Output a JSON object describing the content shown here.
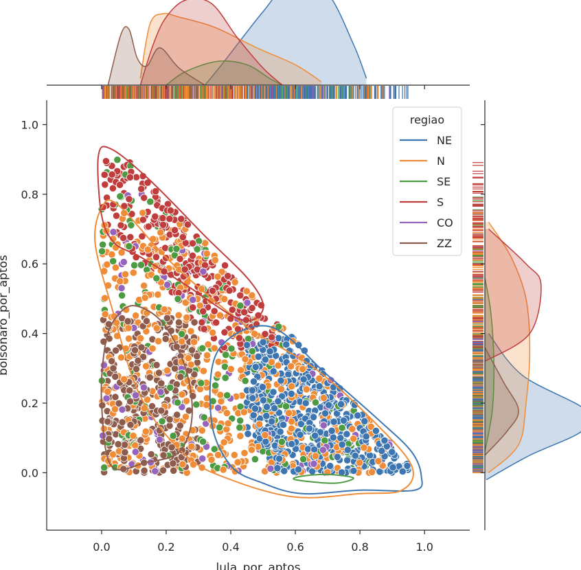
{
  "chart_data": {
    "type": "scatter",
    "title": "",
    "xlabel": "lula_por_aptos",
    "ylabel": "bolsonaro_por_aptos",
    "xlim": [
      -0.17,
      1.14
    ],
    "ylim": [
      -0.165,
      1.07
    ],
    "x_ticks": [
      {
        "value": 0.0,
        "label": "0.0"
      },
      {
        "value": 0.2,
        "label": "0.2"
      },
      {
        "value": 0.4,
        "label": "0.4"
      },
      {
        "value": 0.6,
        "label": "0.6"
      },
      {
        "value": 0.8,
        "label": "0.8"
      },
      {
        "value": 1.0,
        "label": "1.0"
      }
    ],
    "y_ticks": [
      {
        "value": 0.0,
        "label": "0.0"
      },
      {
        "value": 0.2,
        "label": "0.2"
      },
      {
        "value": 0.4,
        "label": "0.4"
      },
      {
        "value": 0.6,
        "label": "0.6"
      },
      {
        "value": 0.8,
        "label": "0.8"
      },
      {
        "value": 1.0,
        "label": "1.0"
      }
    ],
    "grid": false,
    "legend": {
      "title": "regiao",
      "placement": "top-right"
    },
    "series": [
      {
        "name": "NE",
        "color": "#3d75b0",
        "region": {
          "x": [
            0.45,
            0.97
          ],
          "y": [
            0.0,
            0.4
          ]
        },
        "contour": [
          [
            0.36,
            0.35
          ],
          [
            0.52,
            0.42
          ],
          [
            0.7,
            0.28
          ],
          [
            0.86,
            0.15
          ],
          [
            0.96,
            0.06
          ],
          [
            0.99,
            -0.01
          ],
          [
            0.97,
            -0.05
          ],
          [
            0.8,
            -0.05
          ],
          [
            0.62,
            -0.06
          ],
          [
            0.5,
            -0.03
          ],
          [
            0.4,
            0.02
          ],
          [
            0.34,
            0.15
          ]
        ],
        "marginal_x": [
          [
            0.32,
            0.0
          ],
          [
            0.38,
            0.35
          ],
          [
            0.5,
            1.08
          ],
          [
            0.6,
            1.6
          ],
          [
            0.7,
            1.35
          ],
          [
            0.78,
            0.6
          ],
          [
            0.82,
            0.1
          ]
        ],
        "marginal_y": [
          [
            -0.02,
            0.02
          ],
          [
            0.05,
            0.6
          ],
          [
            0.12,
            1.3
          ],
          [
            0.18,
            1.35
          ],
          [
            0.28,
            0.5
          ],
          [
            0.4,
            0.05
          ]
        ]
      },
      {
        "name": "N",
        "color": "#ef8c37",
        "region": {
          "x": [
            0.0,
            0.9
          ],
          "y": [
            0.0,
            0.75
          ]
        },
        "contour": [
          [
            0.0,
            0.76
          ],
          [
            0.05,
            0.77
          ],
          [
            0.22,
            0.6
          ],
          [
            0.45,
            0.42
          ],
          [
            0.66,
            0.3
          ],
          [
            0.84,
            0.15
          ],
          [
            0.96,
            0.02
          ],
          [
            0.93,
            -0.05
          ],
          [
            0.8,
            -0.06
          ],
          [
            0.6,
            -0.07
          ],
          [
            0.4,
            -0.02
          ],
          [
            0.26,
            0.05
          ],
          [
            0.12,
            0.22
          ],
          [
            0.03,
            0.48
          ],
          [
            -0.02,
            0.66
          ]
        ],
        "marginal_x": [
          [
            0.12,
            0.1
          ],
          [
            0.15,
            0.9
          ],
          [
            0.19,
            1.05
          ],
          [
            0.24,
            1.0
          ],
          [
            0.35,
            0.85
          ],
          [
            0.48,
            0.55
          ],
          [
            0.6,
            0.3
          ],
          [
            0.68,
            0.05
          ]
        ],
        "marginal_y": [
          [
            0.0,
            0.05
          ],
          [
            0.08,
            0.45
          ],
          [
            0.2,
            0.55
          ],
          [
            0.35,
            0.6
          ],
          [
            0.5,
            0.55
          ],
          [
            0.62,
            0.35
          ],
          [
            0.72,
            0.05
          ]
        ]
      },
      {
        "name": "SE",
        "color": "#4c9b42",
        "region": {
          "x": [
            0.0,
            0.85
          ],
          "y": [
            0.0,
            0.9
          ]
        },
        "contour": [
          [
            0.6,
            -0.02
          ],
          [
            0.72,
            -0.03
          ],
          [
            0.78,
            -0.015
          ],
          [
            0.7,
            -0.005
          ],
          [
            0.62,
            -0.01
          ]
        ],
        "marginal_x": [
          [
            0.2,
            0.0
          ],
          [
            0.26,
            0.2
          ],
          [
            0.36,
            0.35
          ],
          [
            0.45,
            0.3
          ],
          [
            0.52,
            0.1
          ],
          [
            0.56,
            0.0
          ]
        ],
        "marginal_y": [
          [
            0.06,
            0.0
          ],
          [
            0.18,
            0.1
          ],
          [
            0.32,
            0.12
          ],
          [
            0.46,
            0.08
          ],
          [
            0.56,
            0.0
          ]
        ]
      },
      {
        "name": "S",
        "color": "#c03d3d",
        "region": {
          "x": [
            0.0,
            0.55
          ],
          "y": [
            0.35,
            0.9
          ]
        },
        "contour": [
          [
            -0.01,
            0.91
          ],
          [
            0.03,
            0.93
          ],
          [
            0.15,
            0.84
          ],
          [
            0.32,
            0.68
          ],
          [
            0.46,
            0.55
          ],
          [
            0.5,
            0.47
          ],
          [
            0.43,
            0.44
          ],
          [
            0.26,
            0.54
          ],
          [
            0.12,
            0.62
          ],
          [
            0.04,
            0.66
          ],
          [
            0.0,
            0.74
          ]
        ],
        "marginal_x": [
          [
            0.12,
            0.0
          ],
          [
            0.16,
            0.6
          ],
          [
            0.2,
            1.0
          ],
          [
            0.26,
            1.25
          ],
          [
            0.34,
            1.2
          ],
          [
            0.42,
            0.7
          ],
          [
            0.5,
            0.25
          ],
          [
            0.56,
            0.0
          ]
        ],
        "marginal_y": [
          [
            0.32,
            0.0
          ],
          [
            0.4,
            0.6
          ],
          [
            0.54,
            0.75
          ],
          [
            0.6,
            0.55
          ],
          [
            0.7,
            0.05
          ]
        ]
      },
      {
        "name": "CO",
        "color": "#9565bd",
        "region": {
          "x": [
            0.0,
            0.95
          ],
          "y": [
            0.0,
            0.8
          ]
        },
        "contour": [],
        "marginal_x": [],
        "marginal_y": []
      },
      {
        "name": "ZZ",
        "color": "#8d5c4c",
        "region": {
          "x": [
            0.0,
            0.3
          ],
          "y": [
            0.0,
            0.45
          ]
        },
        "contour": [
          [
            0.0,
            0.2
          ],
          [
            0.01,
            0.36
          ],
          [
            0.04,
            0.44
          ],
          [
            0.1,
            0.48
          ],
          [
            0.19,
            0.43
          ],
          [
            0.26,
            0.3
          ],
          [
            0.28,
            0.16
          ],
          [
            0.24,
            0.06
          ],
          [
            0.14,
            0.03
          ],
          [
            0.03,
            0.02
          ]
        ],
        "marginal_x": [
          [
            0.02,
            0.0
          ],
          [
            0.06,
            0.75
          ],
          [
            0.085,
            0.82
          ],
          [
            0.11,
            0.4
          ],
          [
            0.14,
            0.28
          ],
          [
            0.18,
            0.55
          ],
          [
            0.24,
            0.25
          ],
          [
            0.32,
            0.0
          ]
        ],
        "marginal_y": [
          [
            0.05,
            0.0
          ],
          [
            0.12,
            0.3
          ],
          [
            0.18,
            0.45
          ],
          [
            0.26,
            0.25
          ],
          [
            0.36,
            0.0
          ]
        ]
      }
    ]
  }
}
